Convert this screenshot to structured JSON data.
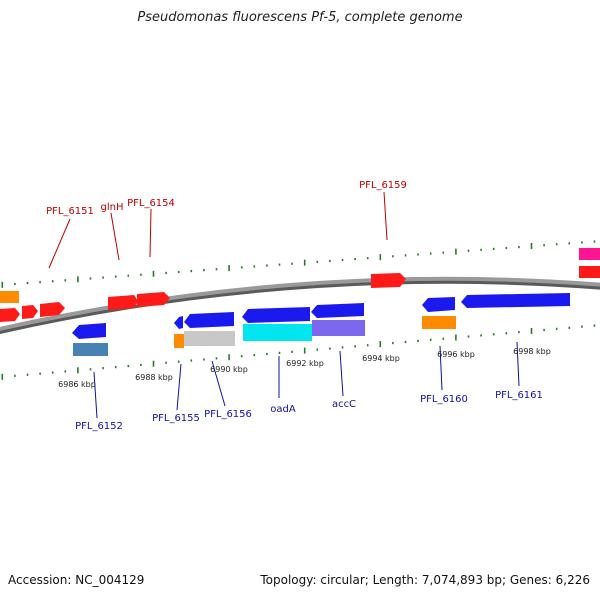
{
  "title": "Pseudomonas fluorescens Pf-5, complete genome",
  "footer": {
    "accession": "Accession: NC_004129",
    "summary": "Topology: circular; Length: 7,074,893 bp; Genes: 6,226"
  },
  "colors": {
    "backbone": "#8a8a8a",
    "forward_track_dots": "#2a7a2a",
    "forward_label": "#c00000",
    "reverse_label": "#1010a0",
    "red": "#ff1a1a",
    "blue": "#1a1aee",
    "orange": "#ff8c00",
    "steel": "#4682b4",
    "gray": "#c8c8c8",
    "cyan": "#00e5ee",
    "purple": "#7b68ee",
    "magenta": "#ff1493"
  },
  "scale_labels": [
    "6986 kbp",
    "6988 kbp",
    "6990 kbp",
    "6992 kbp",
    "6994 kbp",
    "6996 kbp",
    "6998 kbp"
  ],
  "forward_labels": [
    "PFL_6151",
    "glnH",
    "PFL_6154",
    "PFL_6159"
  ],
  "reverse_labels": [
    "PFL_6152",
    "PFL_6155",
    "PFL_6156",
    "oadA",
    "accC",
    "PFL_6160",
    "PFL_6161"
  ]
}
